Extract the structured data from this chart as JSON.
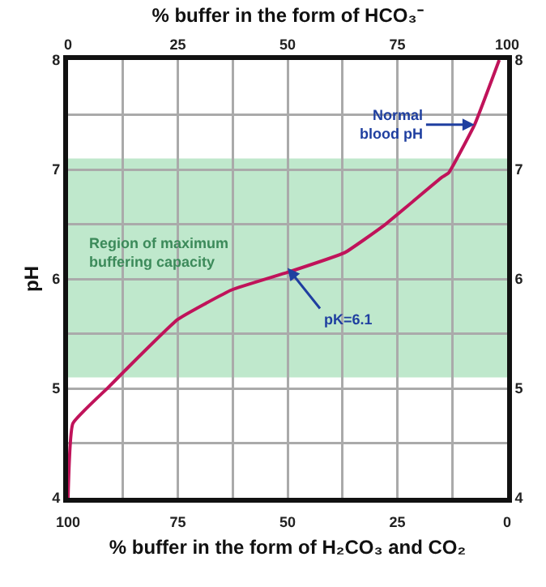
{
  "chart_data": {
    "type": "line",
    "xlabel": "% buffer in the form of H₂CO₃ and CO₂",
    "x2label": "% buffer in the form of HCO₃⁻",
    "ylabel": "pH",
    "x": [
      100,
      98.9,
      90.8,
      87.1,
      75,
      62.7,
      50,
      37,
      28,
      14.8,
      13.3,
      7.4,
      1.8
    ],
    "series": [
      {
        "color": "#c0135a",
        "values": [
          4,
          4.68,
          5.01,
          5.16,
          5.63,
          5.9,
          6.06,
          6.24,
          6.49,
          6.93,
          6.97,
          7.41,
          8
        ]
      }
    ],
    "xlim": [
      100,
      0
    ],
    "xticks": [
      100,
      75,
      50,
      25,
      0
    ],
    "x2lim": [
      0,
      100
    ],
    "x2ticks": [
      0,
      25,
      50,
      75,
      100
    ],
    "ylim": [
      4,
      8
    ],
    "yticks": [
      4,
      5,
      6,
      7,
      8
    ],
    "y2lim": [
      4,
      8
    ],
    "y2ticks": [
      4,
      5,
      6,
      7,
      8
    ],
    "bands": [
      {
        "axis": "y",
        "from": 5.1,
        "to": 7.1,
        "label": "Region of maximum buffering capacity",
        "color": "#bfe8cc"
      }
    ],
    "annotations": [
      {
        "text": "Normal blood pH",
        "x": 7.4,
        "y": 7.41
      },
      {
        "text": "pK=6.1",
        "x": 50,
        "y": 6.1
      }
    ],
    "grid": true,
    "marker": "none",
    "line_style": "solid"
  }
}
